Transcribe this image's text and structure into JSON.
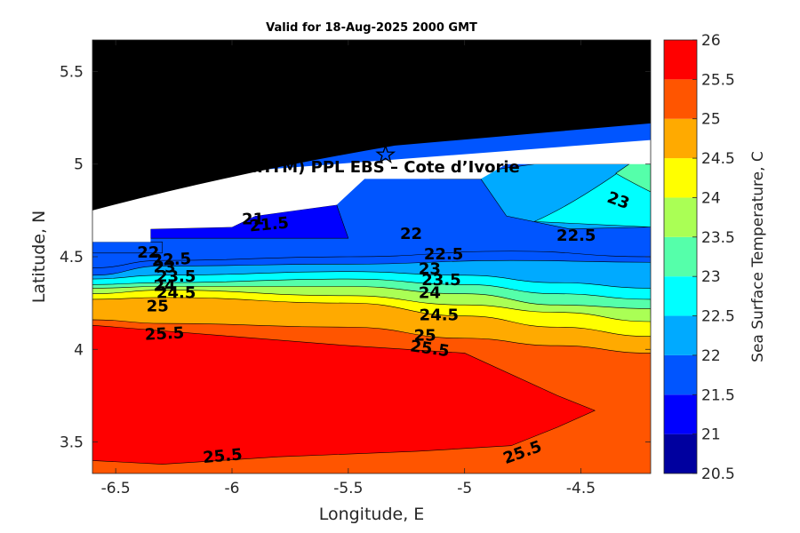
{
  "chart_data": {
    "type": "contour",
    "title": "Valid for 18-Aug-2025 2000 GMT",
    "xlabel": "Longitude, E",
    "ylabel": "Latitude, N",
    "colorbar_label": "Sea Surface Temperature, C",
    "xlim": [
      -6.6,
      -4.2
    ],
    "ylim": [
      3.33,
      5.67
    ],
    "xticks": [
      -6.5,
      -6,
      -5.5,
      -5,
      -4.5
    ],
    "xtick_labels": [
      "-6.5",
      "-6",
      "-5.5",
      "-5",
      "-4.5"
    ],
    "yticks": [
      3.5,
      4,
      4.5,
      5,
      5.5
    ],
    "ytick_labels": [
      "3.5",
      "4",
      "4.5",
      "5",
      "5.5"
    ],
    "colorbar_levels": [
      20.5,
      21,
      21.5,
      22,
      22.5,
      23,
      23.5,
      24,
      24.5,
      25,
      25.5,
      26
    ],
    "colorbar_tick_labels": [
      "20.5",
      "21",
      "21.5",
      "22",
      "22.5",
      "23",
      "23.5",
      "24",
      "24.5",
      "25",
      "25.5",
      "26"
    ],
    "colormap": [
      "#00009f",
      "#0000ff",
      "#0055ff",
      "#00aaff",
      "#00ffff",
      "#55ffaa",
      "#aaff55",
      "#ffff00",
      "#ffaa00",
      "#ff5500",
      "#ff0000"
    ],
    "land_color": "#000000",
    "coast_gap_color": "#ffffff",
    "site_marker": {
      "lon": -5.34,
      "lat": 5.05,
      "symbol": "star",
      "label": "A (ONHYM) PPL EBS  – Cote d’Ivorie"
    },
    "bands": [
      {
        "level": 21.0,
        "profile": [
          [
            -6.35,
            4.43
          ],
          [
            -5.5,
            4.45
          ],
          [
            -4.5,
            4.47
          ],
          [
            -4.2,
            4.47
          ]
        ]
      },
      {
        "level": 21.5,
        "profile": [
          [
            -6.6,
            4.44
          ],
          [
            -6.3,
            4.48
          ],
          [
            -5.5,
            4.5
          ],
          [
            -4.8,
            4.53
          ],
          [
            -4.2,
            4.5
          ]
        ]
      },
      {
        "level": 22.0,
        "profile": [
          [
            -6.6,
            4.4
          ],
          [
            -6.3,
            4.45
          ],
          [
            -5.5,
            4.46
          ],
          [
            -4.8,
            4.48
          ],
          [
            -4.2,
            4.47
          ]
        ]
      },
      {
        "level": 22.5,
        "profile": [
          [
            -6.6,
            4.38
          ],
          [
            -6.3,
            4.4
          ],
          [
            -5.5,
            4.42
          ],
          [
            -5.0,
            4.4
          ],
          [
            -4.6,
            4.36
          ],
          [
            -4.2,
            4.33
          ]
        ]
      },
      {
        "level": 23.0,
        "profile": [
          [
            -6.6,
            4.35
          ],
          [
            -6.3,
            4.36
          ],
          [
            -5.5,
            4.38
          ],
          [
            -5.0,
            4.35
          ],
          [
            -4.6,
            4.3
          ],
          [
            -4.2,
            4.27
          ]
        ]
      },
      {
        "level": 23.5,
        "profile": [
          [
            -6.6,
            4.33
          ],
          [
            -6.3,
            4.34
          ],
          [
            -5.5,
            4.34
          ],
          [
            -5.0,
            4.3
          ],
          [
            -4.6,
            4.24
          ],
          [
            -4.2,
            4.22
          ]
        ]
      },
      {
        "level": 24.0,
        "profile": [
          [
            -6.6,
            4.3
          ],
          [
            -6.3,
            4.32
          ],
          [
            -5.5,
            4.29
          ],
          [
            -5.0,
            4.24
          ],
          [
            -4.6,
            4.2
          ],
          [
            -4.2,
            4.15
          ]
        ]
      },
      {
        "level": 24.5,
        "profile": [
          [
            -6.6,
            4.27
          ],
          [
            -6.3,
            4.28
          ],
          [
            -5.5,
            4.25
          ],
          [
            -5.0,
            4.18
          ],
          [
            -4.6,
            4.12
          ],
          [
            -4.2,
            4.07
          ]
        ]
      },
      {
        "level": 25.0,
        "profile": [
          [
            -6.6,
            4.16
          ],
          [
            -6.3,
            4.14
          ],
          [
            -5.5,
            4.12
          ],
          [
            -5.0,
            4.06
          ],
          [
            -4.6,
            4.02
          ],
          [
            -4.2,
            3.98
          ]
        ]
      },
      {
        "level": 25.5,
        "closed": true,
        "profile": [
          [
            -6.6,
            4.13
          ],
          [
            -6.0,
            4.07
          ],
          [
            -5.5,
            4.02
          ],
          [
            -5.0,
            3.98
          ],
          [
            -4.6,
            3.75
          ],
          [
            -4.44,
            3.67
          ],
          [
            -4.6,
            3.58
          ],
          [
            -4.8,
            3.48
          ],
          [
            -5.2,
            3.45
          ],
          [
            -5.8,
            3.42
          ],
          [
            -6.3,
            3.38
          ],
          [
            -6.6,
            3.4
          ]
        ]
      }
    ],
    "contour_labels": [
      {
        "text": "21",
        "lon": -5.91,
        "lat": 4.7,
        "angle": 0
      },
      {
        "text": "21.5",
        "lon": -5.84,
        "lat": 4.67,
        "angle": -5
      },
      {
        "text": "22",
        "lon": -5.23,
        "lat": 4.62,
        "angle": 0
      },
      {
        "text": "22",
        "lon": -6.36,
        "lat": 4.52,
        "angle": 0
      },
      {
        "text": "22.5",
        "lon": -6.26,
        "lat": 4.48,
        "angle": -3
      },
      {
        "text": "23",
        "lon": -6.29,
        "lat": 4.44,
        "angle": 0
      },
      {
        "text": "23.5",
        "lon": -6.24,
        "lat": 4.39,
        "angle": 0
      },
      {
        "text": "24",
        "lon": -6.29,
        "lat": 4.34,
        "angle": 0
      },
      {
        "text": "24.5",
        "lon": -6.24,
        "lat": 4.3,
        "angle": 0
      },
      {
        "text": "25",
        "lon": -6.32,
        "lat": 4.23,
        "angle": 0
      },
      {
        "text": "25.5",
        "lon": -6.29,
        "lat": 4.08,
        "angle": -3
      },
      {
        "text": "22.5",
        "lon": -5.09,
        "lat": 4.51,
        "angle": 0
      },
      {
        "text": "23",
        "lon": -5.15,
        "lat": 4.43,
        "angle": 0
      },
      {
        "text": "23.5",
        "lon": -5.1,
        "lat": 4.37,
        "angle": 0
      },
      {
        "text": "24",
        "lon": -5.15,
        "lat": 4.3,
        "angle": 0
      },
      {
        "text": "24.5",
        "lon": -5.11,
        "lat": 4.18,
        "angle": 0
      },
      {
        "text": "25",
        "lon": -5.17,
        "lat": 4.07,
        "angle": 0
      },
      {
        "text": "25.5",
        "lon": -5.15,
        "lat": 4.0,
        "angle": 8
      },
      {
        "text": "22.5",
        "lon": -4.52,
        "lat": 4.61,
        "angle": 0
      },
      {
        "text": "23",
        "lon": -4.34,
        "lat": 4.8,
        "angle": 20
      },
      {
        "text": "25.5",
        "lon": -6.04,
        "lat": 3.42,
        "angle": -5
      },
      {
        "text": "25.5",
        "lon": -4.75,
        "lat": 3.44,
        "angle": -20
      }
    ]
  }
}
